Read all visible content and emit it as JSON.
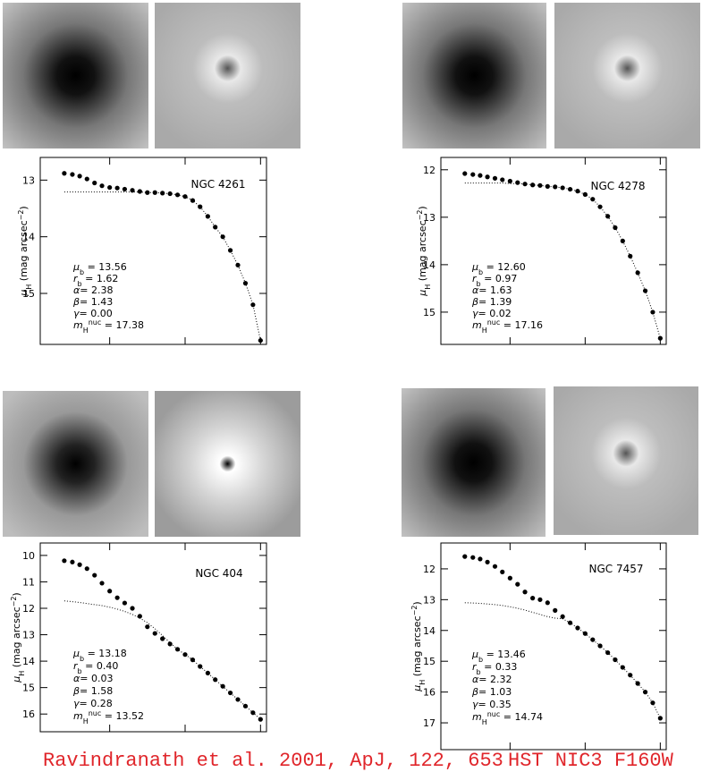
{
  "chart_data": [
    {
      "type": "scatter",
      "title": "NGC 4261",
      "ylabel": {
        "symbol": "μ",
        "sub": "H",
        "text": " (mag arcsec",
        "sup": "−2",
        "end": ")"
      },
      "xscale": "log",
      "xlim": [
        0.012,
        12
      ],
      "xticks": [
        0.1,
        1,
        10
      ],
      "ylim": [
        12.6,
        15.9
      ],
      "invert_y": true,
      "yticks": [
        13,
        14,
        15
      ],
      "x": [
        0.025,
        0.032,
        0.04,
        0.05,
        0.063,
        0.079,
        0.1,
        0.126,
        0.158,
        0.2,
        0.251,
        0.316,
        0.398,
        0.501,
        0.631,
        0.794,
        1,
        1.26,
        1.58,
        2.0,
        2.51,
        3.16,
        3.98,
        5.01,
        6.31,
        7.94,
        10
      ],
      "series": [
        {
          "style": "points",
          "color": "#000000",
          "values": [
            12.88,
            12.9,
            12.93,
            12.98,
            13.05,
            13.1,
            13.13,
            13.14,
            13.16,
            13.18,
            13.2,
            13.22,
            13.22,
            13.23,
            13.24,
            13.26,
            13.29,
            13.36,
            13.47,
            13.64,
            13.83,
            14.0,
            14.24,
            14.5,
            14.82,
            15.2,
            15.83
          ]
        },
        {
          "style": "dotted",
          "color": "#000000",
          "values": [
            13.21,
            13.21,
            13.21,
            13.21,
            13.21,
            13.21,
            13.21,
            13.21,
            13.21,
            13.21,
            13.21,
            13.22,
            13.22,
            13.23,
            13.24,
            13.26,
            13.29,
            13.36,
            13.47,
            13.64,
            13.83,
            14.0,
            14.24,
            14.5,
            14.82,
            15.2,
            15.83
          ]
        }
      ],
      "annotations": [
        {
          "symbol": "μ",
          "sub": "b",
          "text": " = 13.56"
        },
        {
          "symbol": "r",
          "sub": "b",
          "text": " = 1.62"
        },
        {
          "symbol": "α",
          "text": "= 2.38"
        },
        {
          "symbol": "β",
          "text": "= 1.43"
        },
        {
          "symbol": "γ",
          "text": "= 0.00"
        },
        {
          "symbol": "m",
          "sub": "H",
          "sup": "nuc",
          "text": " = 17.38"
        }
      ]
    },
    {
      "type": "scatter",
      "title": "NGC 4278",
      "ylabel": {
        "symbol": "μ",
        "sub": "H",
        "text": " (mag arcsec",
        "sup": "−2",
        "end": ")"
      },
      "xscale": "log",
      "xlim": [
        0.012,
        12
      ],
      "xticks": [
        0.1,
        1,
        10
      ],
      "ylim": [
        11.74,
        15.68
      ],
      "invert_y": true,
      "yticks": [
        12,
        13,
        14,
        15
      ],
      "x": [
        0.025,
        0.032,
        0.04,
        0.05,
        0.063,
        0.079,
        0.1,
        0.126,
        0.158,
        0.2,
        0.251,
        0.316,
        0.398,
        0.501,
        0.631,
        0.794,
        1,
        1.26,
        1.58,
        2.0,
        2.51,
        3.16,
        3.98,
        5.01,
        6.31,
        7.94,
        10
      ],
      "series": [
        {
          "style": "points",
          "color": "#000000",
          "values": [
            12.08,
            12.1,
            12.12,
            12.15,
            12.18,
            12.21,
            12.24,
            12.27,
            12.3,
            12.32,
            12.33,
            12.35,
            12.36,
            12.38,
            12.41,
            12.45,
            12.52,
            12.62,
            12.78,
            12.98,
            13.22,
            13.5,
            13.82,
            14.17,
            14.55,
            15.0,
            15.55
          ]
        },
        {
          "style": "dotted",
          "color": "#000000",
          "values": [
            12.28,
            12.28,
            12.28,
            12.28,
            12.28,
            12.28,
            12.29,
            12.29,
            12.3,
            12.32,
            12.33,
            12.35,
            12.36,
            12.38,
            12.41,
            12.45,
            12.52,
            12.62,
            12.78,
            12.98,
            13.22,
            13.5,
            13.82,
            14.17,
            14.55,
            15.0,
            15.55
          ]
        }
      ],
      "annotations": [
        {
          "symbol": "μ",
          "sub": "b",
          "text": " = 12.60"
        },
        {
          "symbol": "r",
          "sub": "b",
          "text": " = 0.97"
        },
        {
          "symbol": "α",
          "text": "= 1.63"
        },
        {
          "symbol": "β",
          "text": "= 1.39"
        },
        {
          "symbol": "γ",
          "text": "= 0.02"
        },
        {
          "symbol": "m",
          "sub": "H",
          "sup": "nuc",
          "text": " = 17.16"
        }
      ]
    },
    {
      "type": "scatter",
      "title": "NGC 404",
      "ylabel": {
        "symbol": "μ",
        "sub": "H",
        "text": " (mag arcsec",
        "sup": "−2",
        "end": ")"
      },
      "xscale": "log",
      "xlim": [
        0.012,
        12
      ],
      "xticks": [
        0.1,
        1,
        10
      ],
      "ylim": [
        9.53,
        16.67
      ],
      "invert_y": true,
      "yticks": [
        10,
        11,
        12,
        13,
        14,
        15,
        16
      ],
      "x": [
        0.025,
        0.032,
        0.04,
        0.05,
        0.063,
        0.079,
        0.1,
        0.126,
        0.158,
        0.2,
        0.251,
        0.316,
        0.398,
        0.501,
        0.631,
        0.794,
        1,
        1.26,
        1.58,
        2.0,
        2.51,
        3.16,
        3.98,
        5.01,
        6.31,
        7.94,
        10
      ],
      "series": [
        {
          "style": "points",
          "color": "#000000",
          "values": [
            10.2,
            10.25,
            10.35,
            10.5,
            10.75,
            11.05,
            11.35,
            11.6,
            11.8,
            12.0,
            12.3,
            12.7,
            12.95,
            13.15,
            13.35,
            13.55,
            13.75,
            13.95,
            14.2,
            14.45,
            14.7,
            14.95,
            15.2,
            15.45,
            15.7,
            15.95,
            16.2
          ]
        },
        {
          "style": "dotted",
          "color": "#000000",
          "values": [
            11.72,
            11.75,
            11.78,
            11.82,
            11.86,
            11.9,
            11.96,
            12.03,
            12.12,
            12.23,
            12.37,
            12.55,
            12.77,
            13.03,
            13.3,
            13.55,
            13.75,
            13.95,
            14.2,
            14.45,
            14.7,
            14.95,
            15.2,
            15.45,
            15.7,
            15.95,
            16.2
          ]
        }
      ],
      "annotations": [
        {
          "symbol": "μ",
          "sub": "b",
          "text": " = 13.18"
        },
        {
          "symbol": "r",
          "sub": "b",
          "text": " = 0.40"
        },
        {
          "symbol": "α",
          "text": "= 0.03"
        },
        {
          "symbol": "β",
          "text": "= 1.58"
        },
        {
          "symbol": "γ",
          "text": "= 0.28"
        },
        {
          "symbol": "m",
          "sub": "H",
          "sup": "nuc",
          "text": " = 13.52"
        }
      ]
    },
    {
      "type": "scatter",
      "title": "NGC 7457",
      "ylabel": {
        "symbol": "μ",
        "sub": "H",
        "text": " (mag arcsec",
        "sup": "−2",
        "end": ")"
      },
      "xscale": "log",
      "xlim": [
        0.012,
        12
      ],
      "xticks": [
        0.1,
        1,
        10
      ],
      "ylim": [
        11.16,
        17.87
      ],
      "invert_y": true,
      "yticks": [
        12,
        13,
        14,
        15,
        16,
        17
      ],
      "x": [
        0.025,
        0.032,
        0.04,
        0.05,
        0.063,
        0.079,
        0.1,
        0.126,
        0.158,
        0.2,
        0.251,
        0.316,
        0.398,
        0.501,
        0.631,
        0.794,
        1,
        1.26,
        1.58,
        2.0,
        2.51,
        3.16,
        3.98,
        5.01,
        6.31,
        7.94,
        10
      ],
      "series": [
        {
          "style": "points",
          "color": "#000000",
          "values": [
            11.6,
            11.63,
            11.68,
            11.78,
            11.92,
            12.1,
            12.3,
            12.5,
            12.75,
            12.95,
            13.0,
            13.1,
            13.35,
            13.55,
            13.75,
            13.92,
            14.1,
            14.3,
            14.5,
            14.72,
            14.95,
            15.2,
            15.45,
            15.72,
            16.0,
            16.35,
            16.85
          ]
        },
        {
          "style": "dotted",
          "color": "#000000",
          "values": [
            13.1,
            13.11,
            13.12,
            13.14,
            13.16,
            13.19,
            13.23,
            13.28,
            13.34,
            13.41,
            13.48,
            13.55,
            13.6,
            13.62,
            13.75,
            13.92,
            14.1,
            14.3,
            14.5,
            14.72,
            14.95,
            15.2,
            15.45,
            15.72,
            16.0,
            16.35,
            16.85
          ]
        }
      ],
      "annotations": [
        {
          "symbol": "μ",
          "sub": "b",
          "text": " = 13.46"
        },
        {
          "symbol": "r",
          "sub": "b",
          "text": " = 0.33"
        },
        {
          "symbol": "α",
          "text": "= 2.32"
        },
        {
          "symbol": "β",
          "text": "= 1.03"
        },
        {
          "symbol": "γ",
          "text": "= 0.35"
        },
        {
          "symbol": "m",
          "sub": "H",
          "sup": "nuc",
          "text": " = 14.74"
        }
      ]
    }
  ],
  "footer": {
    "citation": "Ravindranath et al. 2001, ApJ, 122, 653",
    "instrument": "HST NIC3 F160W"
  }
}
